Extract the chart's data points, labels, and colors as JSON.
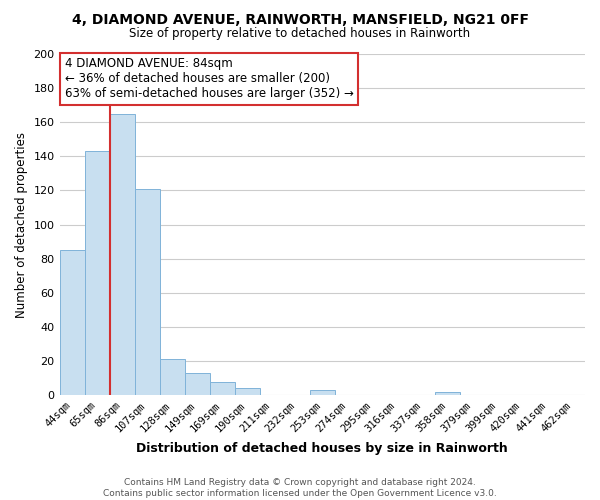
{
  "title": "4, DIAMOND AVENUE, RAINWORTH, MANSFIELD, NG21 0FF",
  "subtitle": "Size of property relative to detached houses in Rainworth",
  "xlabel": "Distribution of detached houses by size in Rainworth",
  "ylabel": "Number of detached properties",
  "bar_labels": [
    "44sqm",
    "65sqm",
    "86sqm",
    "107sqm",
    "128sqm",
    "149sqm",
    "169sqm",
    "190sqm",
    "211sqm",
    "232sqm",
    "253sqm",
    "274sqm",
    "295sqm",
    "316sqm",
    "337sqm",
    "358sqm",
    "379sqm",
    "399sqm",
    "420sqm",
    "441sqm",
    "462sqm"
  ],
  "bar_values": [
    85,
    143,
    165,
    121,
    21,
    13,
    8,
    4,
    0,
    0,
    3,
    0,
    0,
    0,
    0,
    2,
    0,
    0,
    0,
    0,
    0
  ],
  "bar_color_default": "#c8dff0",
  "bar_edge_color": "#7fb3d9",
  "bar_color_highlight": "#d32f2f",
  "red_line_after_index": 1,
  "annotation_box_text": "4 DIAMOND AVENUE: 84sqm\n← 36% of detached houses are smaller (200)\n63% of semi-detached houses are larger (352) →",
  "annotation_box_color": "#ffffff",
  "annotation_box_edge": "#d32f2f",
  "ylim": [
    0,
    200
  ],
  "yticks": [
    0,
    20,
    40,
    60,
    80,
    100,
    120,
    140,
    160,
    180,
    200
  ],
  "footer": "Contains HM Land Registry data © Crown copyright and database right 2024.\nContains public sector information licensed under the Open Government Licence v3.0.",
  "bg_color": "#ffffff",
  "grid_color": "#cccccc"
}
